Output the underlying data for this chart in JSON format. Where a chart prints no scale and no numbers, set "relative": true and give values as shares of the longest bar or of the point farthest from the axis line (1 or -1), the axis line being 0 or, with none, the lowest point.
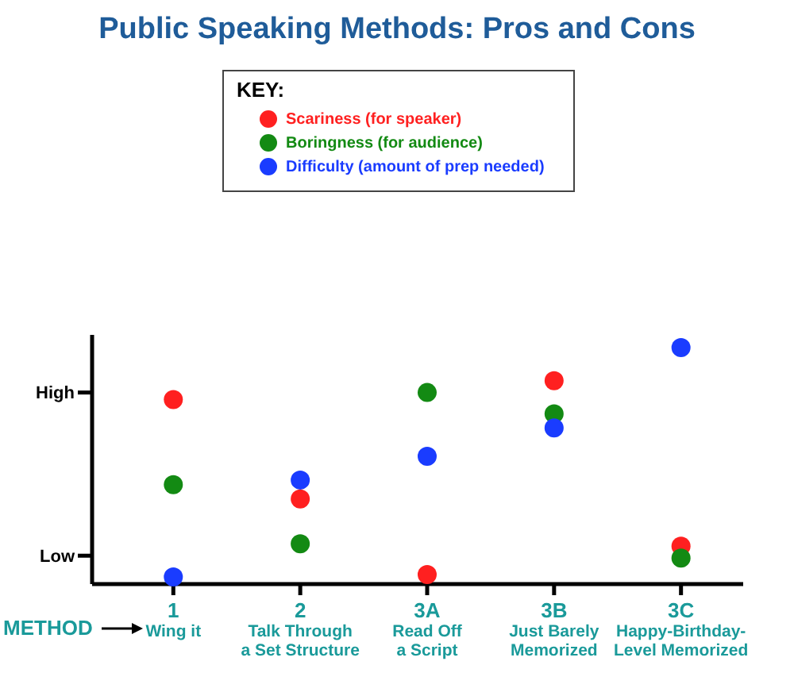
{
  "chart_data": {
    "type": "scatter",
    "title": "Public Speaking Methods: Pros and Cons",
    "xlabel": "METHOD",
    "legend_title": "KEY:",
    "legend": "top",
    "marker": "circle",
    "relative": true,
    "categories": [
      "1\nWing it",
      "2\nTalk Through\na Set Structure",
      "3A\nRead Off\na Script",
      "3B\nJust Barely\nMemorized",
      "3C\nHappy-Birthday-\nLevel Memorized"
    ],
    "ref_lines": [
      {
        "axis": "y",
        "value": 0.12,
        "label": "Low"
      },
      {
        "axis": "y",
        "value": 0.81,
        "label": "High"
      }
    ],
    "series": [
      {
        "name": "Scariness (for speaker)",
        "color": "#ff2020",
        "values": [
          0.78,
          0.36,
          0.04,
          0.86,
          0.16
        ]
      },
      {
        "name": "Boringness (for audience)",
        "color": "#138a13",
        "values": [
          0.42,
          0.17,
          0.81,
          0.72,
          0.11
        ]
      },
      {
        "name": "Difficulty (amount of prep needed)",
        "color": "#1a3cff",
        "values": [
          0.03,
          0.44,
          0.54,
          0.66,
          1
        ]
      }
    ]
  }
}
